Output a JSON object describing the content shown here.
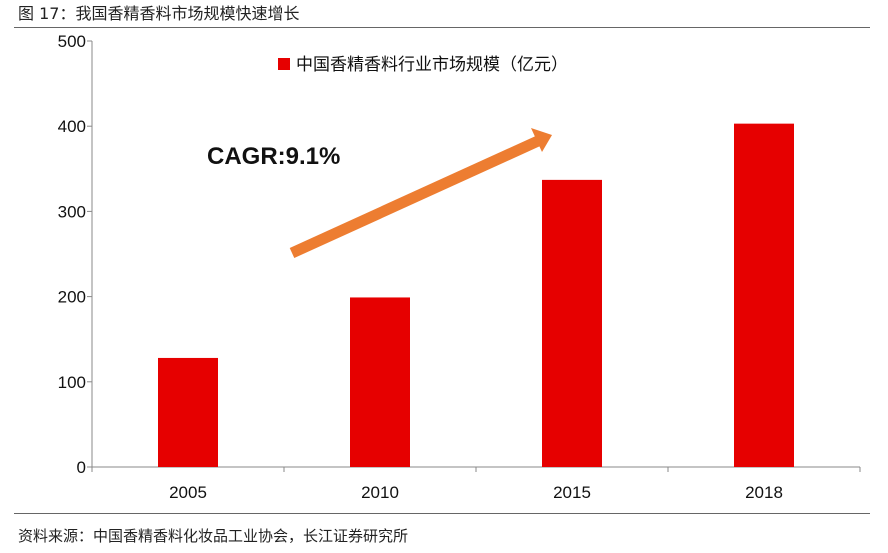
{
  "figure": {
    "title": "图 17：我国香精香料市场规模快速增长",
    "source": "资料来源：中国香精香料化妆品工业协会，长江证券研究所"
  },
  "chart_data": {
    "type": "bar",
    "categories": [
      "2005",
      "2010",
      "2015",
      "2018"
    ],
    "series": [
      {
        "name": "中国香精香料行业市场规模（亿元）",
        "values": [
          128,
          199,
          337,
          403
        ],
        "color": "#e60000"
      }
    ],
    "title": "",
    "xlabel": "",
    "ylabel": "",
    "ylim": [
      0,
      500
    ],
    "yticks": [
      0,
      100,
      200,
      300,
      400,
      500
    ],
    "grid": false,
    "legend_position": "top",
    "annotations": [
      {
        "text": "CAGR:9.1%",
        "type": "label"
      },
      {
        "type": "arrow",
        "color": "#ed7d31"
      }
    ]
  }
}
